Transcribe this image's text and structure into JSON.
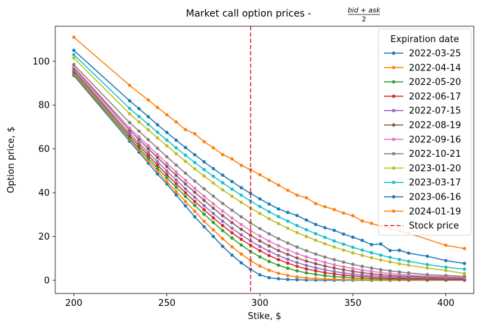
{
  "chart_data": {
    "type": "line",
    "title": "Market call option prices - ",
    "title_formula": {
      "top": "bid + ask",
      "bottom": "2"
    },
    "xlabel": "Stike, $",
    "ylabel": "Option price, $",
    "xlim": [
      190,
      415
    ],
    "ylim": [
      -6,
      116
    ],
    "xticks": [
      200,
      250,
      300,
      350,
      400
    ],
    "yticks": [
      0,
      20,
      40,
      60,
      80,
      100
    ],
    "grid": false,
    "legend_title": "Expiration date",
    "legend_position": "top-right",
    "vline": {
      "x": 295,
      "label": "Stock price",
      "color": "#d62728",
      "style": "dashed"
    },
    "series": [
      {
        "name": "2022-03-25",
        "color": "#1f77b4",
        "x": [
          200,
          230,
          235,
          240,
          245,
          250,
          255,
          260,
          265,
          270,
          275,
          280,
          285,
          290,
          295,
          300,
          305,
          310,
          315,
          320,
          325,
          330,
          335,
          340,
          345,
          350,
          360,
          370,
          380,
          390,
          400,
          410
        ],
        "y": [
          93.5,
          63.5,
          58.5,
          53.5,
          48.5,
          44,
          39,
          34,
          29,
          24.5,
          20,
          15.5,
          11.5,
          8,
          5,
          2.5,
          1.2,
          0.7,
          0.4,
          0.25,
          0.15,
          0.1,
          0.08,
          0.05,
          0.05,
          0.04,
          0.03,
          0.02,
          0.02,
          0.02,
          0.02,
          0.02
        ]
      },
      {
        "name": "2022-04-14",
        "color": "#ff7f0e",
        "x": [
          200,
          230,
          235,
          240,
          245,
          250,
          255,
          260,
          265,
          270,
          275,
          280,
          285,
          290,
          295,
          300,
          305,
          310,
          315,
          320,
          325,
          330,
          335,
          340,
          345,
          350,
          355,
          360,
          365,
          370,
          375,
          380,
          390,
          400,
          410
        ],
        "y": [
          94,
          64.5,
          59.5,
          54.5,
          50,
          45,
          40.5,
          36,
          31.5,
          27,
          23,
          19,
          15.3,
          12,
          9,
          6.5,
          4.6,
          3.2,
          2.2,
          1.5,
          1.1,
          0.8,
          0.6,
          0.45,
          0.35,
          0.3,
          0.25,
          0.2,
          0.18,
          0.16,
          0.15,
          0.14,
          0.12,
          0.1,
          0.1
        ]
      },
      {
        "name": "2022-05-20",
        "color": "#2ca02c",
        "x": [
          200,
          230,
          235,
          240,
          245,
          250,
          255,
          260,
          265,
          270,
          275,
          280,
          285,
          290,
          295,
          300,
          305,
          310,
          315,
          320,
          325,
          330,
          335,
          340,
          345,
          350,
          355,
          360,
          365,
          370,
          375,
          380,
          390,
          400,
          410
        ],
        "y": [
          94.5,
          65,
          60.3,
          55.7,
          51.2,
          46.8,
          42.5,
          38.3,
          34.2,
          30.2,
          26.4,
          22.7,
          19.3,
          16.1,
          13.2,
          10.7,
          8.6,
          6.9,
          5.5,
          4.3,
          3.4,
          2.7,
          2.1,
          1.7,
          1.4,
          1.1,
          0.9,
          0.75,
          0.65,
          0.55,
          0.5,
          0.45,
          0.35,
          0.3,
          0.25
        ]
      },
      {
        "name": "2022-06-17",
        "color": "#d62728",
        "x": [
          200,
          230,
          235,
          240,
          245,
          250,
          255,
          260,
          265,
          270,
          275,
          280,
          285,
          290,
          295,
          300,
          305,
          310,
          315,
          320,
          325,
          330,
          335,
          340,
          345,
          350,
          355,
          360,
          365,
          370,
          375,
          380,
          390,
          400,
          410
        ],
        "y": [
          95.5,
          66,
          61.5,
          57,
          52.6,
          48.3,
          44.1,
          40,
          36,
          32.2,
          28.5,
          25,
          21.7,
          18.7,
          16,
          13.5,
          11.3,
          9.4,
          7.8,
          6.4,
          5.2,
          4.3,
          3.5,
          2.9,
          2.4,
          2,
          1.7,
          1.4,
          1.2,
          1,
          0.9,
          0.8,
          0.6,
          0.5,
          0.4
        ]
      },
      {
        "name": "2022-07-15",
        "color": "#9467bd",
        "x": [
          200,
          230,
          235,
          240,
          245,
          250,
          255,
          260,
          265,
          270,
          275,
          280,
          285,
          290,
          295,
          300,
          305,
          310,
          315,
          320,
          325,
          330,
          335,
          340,
          345,
          350,
          355,
          360,
          365,
          370,
          375,
          380,
          390,
          400,
          410
        ],
        "y": [
          96,
          67,
          62.7,
          58.4,
          54.1,
          49.9,
          45.8,
          41.8,
          37.9,
          34.1,
          30.5,
          27,
          23.8,
          20.8,
          18,
          15.5,
          13.3,
          11.3,
          9.6,
          8.1,
          6.8,
          5.7,
          4.8,
          4,
          3.4,
          2.9,
          2.4,
          2.1,
          1.8,
          1.6,
          1.4,
          1.2,
          1,
          0.9,
          0.8
        ]
      },
      {
        "name": "2022-08-19",
        "color": "#8c564b",
        "x": [
          200,
          230,
          235,
          240,
          245,
          250,
          255,
          260,
          265,
          270,
          275,
          280,
          285,
          290,
          295,
          300,
          305,
          310,
          315,
          320,
          325,
          330,
          335,
          340,
          345,
          350,
          355,
          360,
          365,
          370,
          375,
          380,
          390,
          400,
          410
        ],
        "y": [
          97,
          68.5,
          64.3,
          60.1,
          56,
          51.9,
          47.9,
          44,
          40.2,
          36.5,
          32.9,
          29.5,
          26.3,
          23.3,
          20.5,
          18,
          15.7,
          13.6,
          11.8,
          10.2,
          8.8,
          7.6,
          6.5,
          5.6,
          4.8,
          4.1,
          3.5,
          3,
          2.6,
          2.3,
          2,
          1.8,
          1.5,
          1.3,
          1.1
        ]
      },
      {
        "name": "2022-09-16",
        "color": "#e377c2",
        "x": [
          200,
          230,
          235,
          240,
          245,
          250,
          255,
          260,
          265,
          270,
          275,
          280,
          285,
          290,
          295,
          300,
          305,
          310,
          315,
          320,
          325,
          330,
          335,
          340,
          345,
          350,
          355,
          360,
          365,
          370,
          375,
          380,
          390,
          400,
          410
        ],
        "y": [
          97.5,
          69.5,
          65.5,
          61.4,
          57.4,
          53.4,
          49.5,
          45.7,
          42,
          38.4,
          34.9,
          31.6,
          28.4,
          25.5,
          22.7,
          20.2,
          17.9,
          15.8,
          13.9,
          12.2,
          10.7,
          9.4,
          8.2,
          7.1,
          6.2,
          5.4,
          4.7,
          4.1,
          3.6,
          3.1,
          2.7,
          2.4,
          1.9,
          1.6,
          1.3
        ]
      },
      {
        "name": "2022-10-21",
        "color": "#7f7f7f",
        "x": [
          200,
          230,
          235,
          240,
          245,
          250,
          255,
          260,
          265,
          270,
          275,
          280,
          285,
          290,
          295,
          300,
          305,
          310,
          315,
          320,
          325,
          330,
          335,
          340,
          345,
          350,
          355,
          360,
          365,
          370,
          375,
          380,
          390,
          400,
          410
        ],
        "y": [
          98.5,
          72,
          68.1,
          64.2,
          60.3,
          56.4,
          52.6,
          48.9,
          45.3,
          41.8,
          38.4,
          35.1,
          32,
          29,
          26.2,
          23.6,
          21.2,
          19,
          17,
          15.2,
          13.5,
          12,
          10.6,
          9.4,
          8.3,
          7.3,
          6.4,
          5.6,
          4.9,
          4.3,
          3.8,
          3.4,
          2.6,
          2.2,
          1.8
        ]
      },
      {
        "name": "2023-01-20",
        "color": "#bcbd22",
        "x": [
          200,
          230,
          235,
          240,
          245,
          250,
          255,
          260,
          265,
          270,
          275,
          280,
          285,
          290,
          295,
          300,
          305,
          310,
          315,
          320,
          325,
          330,
          335,
          340,
          345,
          350,
          355,
          360,
          365,
          370,
          375,
          380,
          390,
          400,
          410
        ],
        "y": [
          101.5,
          76,
          72.3,
          68.7,
          65,
          61.4,
          57.8,
          54.3,
          50.9,
          47.6,
          44.4,
          41.3,
          38.4,
          35.6,
          33,
          30.5,
          28.1,
          25.9,
          23.8,
          21.8,
          20,
          18.3,
          16.7,
          15.2,
          13.8,
          12.5,
          11.4,
          10.3,
          9.3,
          8.4,
          7.6,
          6.9,
          5.6,
          4.5,
          3.1
        ]
      },
      {
        "name": "2023-03-17",
        "color": "#17becf",
        "x": [
          200,
          230,
          235,
          240,
          245,
          250,
          255,
          260,
          265,
          270,
          275,
          280,
          285,
          290,
          295,
          300,
          305,
          310,
          315,
          320,
          325,
          330,
          335,
          340,
          345,
          350,
          355,
          360,
          365,
          370,
          375,
          380,
          390,
          400,
          410
        ],
        "y": [
          103,
          78.5,
          74.8,
          71.2,
          67.6,
          64,
          60.5,
          57.1,
          53.8,
          50.6,
          47.5,
          44.5,
          41.6,
          38.9,
          36.2,
          33.7,
          31.3,
          29.1,
          27,
          25,
          23.1,
          21.3,
          19.6,
          18,
          16.5,
          15.1,
          13.8,
          12.6,
          11.5,
          10.5,
          9.5,
          8.7,
          7.2,
          6,
          5.1
        ]
      },
      {
        "name": "2023-06-16",
        "color": "#1f77b4",
        "x": [
          200,
          230,
          235,
          240,
          245,
          250,
          255,
          260,
          265,
          270,
          275,
          280,
          285,
          290,
          295,
          300,
          305,
          310,
          315,
          320,
          325,
          330,
          335,
          340,
          345,
          350,
          355,
          360,
          365,
          370,
          375,
          380,
          390,
          400,
          410
        ],
        "y": [
          105,
          82,
          78.4,
          74.7,
          71,
          67.5,
          64,
          60.6,
          57.3,
          54.1,
          51,
          48,
          45.1,
          42.3,
          39.7,
          37.2,
          34.8,
          32.6,
          31,
          29.6,
          27.5,
          25.5,
          24,
          22.8,
          21.1,
          19.7,
          18.2,
          16.3,
          16.6,
          13.6,
          13.7,
          12.4,
          11,
          9,
          7.7
        ]
      },
      {
        "name": "2024-01-19",
        "color": "#ff7f0e",
        "x": [
          200,
          230,
          240,
          245,
          250,
          255,
          260,
          265,
          270,
          275,
          280,
          285,
          290,
          295,
          300,
          305,
          310,
          315,
          320,
          325,
          330,
          335,
          340,
          345,
          350,
          355,
          360,
          365,
          370,
          375,
          380,
          400,
          410
        ],
        "y": [
          111,
          89,
          82.3,
          78.9,
          75.6,
          72.3,
          68.8,
          66.9,
          63.3,
          60.5,
          57.4,
          55.4,
          52.5,
          50.5,
          48.2,
          45.8,
          43.5,
          41.1,
          38.9,
          37.7,
          35,
          33.6,
          32.3,
          30.7,
          29.5,
          27.1,
          26,
          24.7,
          23.6,
          22.5,
          21.5,
          16,
          14.5
        ]
      }
    ]
  }
}
